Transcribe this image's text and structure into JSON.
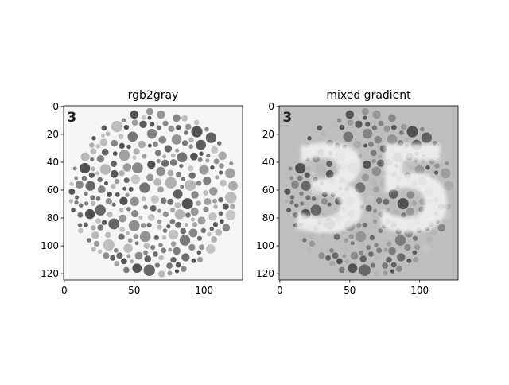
{
  "chart_data": [
    {
      "type": "image",
      "title": "rgb2gray",
      "background": "#f6f6f6",
      "plate_mark": "3",
      "xlim": [
        -0.5,
        127.5
      ],
      "ylim": [
        124.5,
        -0.5
      ],
      "xticks": [
        0,
        50,
        100
      ],
      "yticks": [
        0,
        20,
        40,
        60,
        80,
        100,
        120
      ]
    },
    {
      "type": "image",
      "title": "mixed gradient",
      "background": "#bebebe",
      "plate_mark": "3",
      "hidden_number": "35",
      "xlim": [
        -0.5,
        127.5
      ],
      "ylim": [
        124.5,
        -0.5
      ],
      "xticks": [
        0,
        50,
        100
      ],
      "yticks": [
        0,
        20,
        40,
        60,
        80,
        100,
        120
      ]
    }
  ]
}
